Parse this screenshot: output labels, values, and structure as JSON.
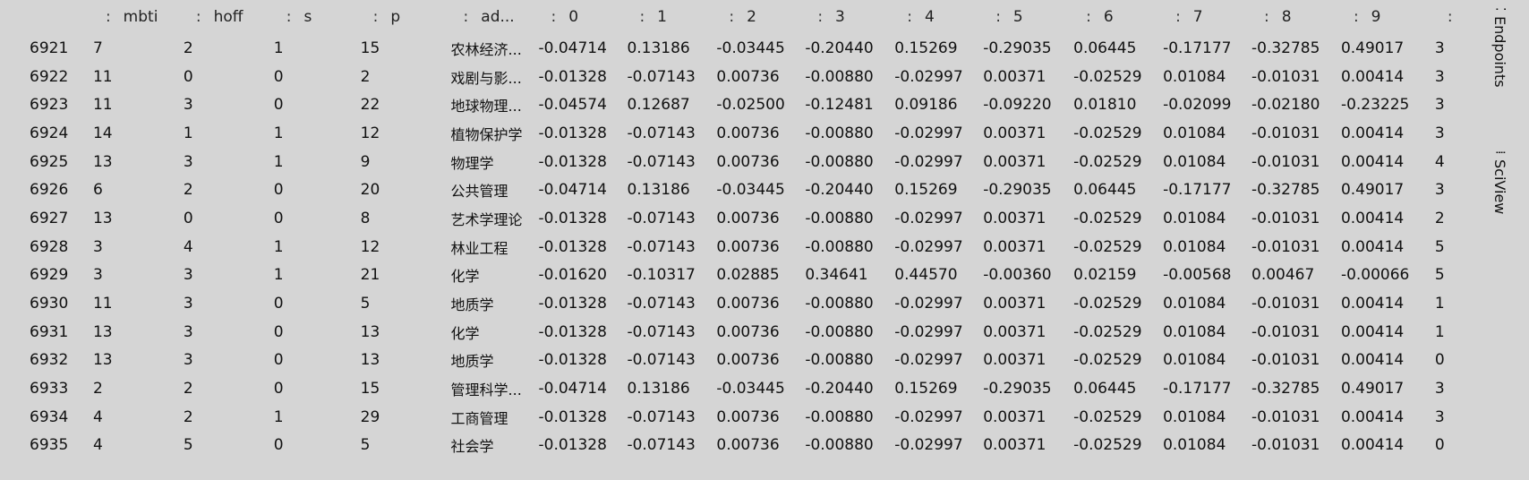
{
  "columns": [
    {
      "label": "",
      "colon": false
    },
    {
      "label": "mbti",
      "colon": true
    },
    {
      "label": "hoff",
      "colon": true
    },
    {
      "label": "s",
      "colon": true
    },
    {
      "label": "p",
      "colon": true
    },
    {
      "label": "ad...",
      "colon": true
    },
    {
      "label": "0",
      "colon": true
    },
    {
      "label": "1",
      "colon": true
    },
    {
      "label": "2",
      "colon": true
    },
    {
      "label": "3",
      "colon": true
    },
    {
      "label": "4",
      "colon": true
    },
    {
      "label": "5",
      "colon": true
    },
    {
      "label": "6",
      "colon": true
    },
    {
      "label": "7",
      "colon": true
    },
    {
      "label": "8",
      "colon": true
    },
    {
      "label": "9",
      "colon": true
    },
    {
      "label": "",
      "colon": true
    }
  ],
  "rows": [
    [
      "6921",
      "7",
      "2",
      "1",
      "15",
      "农林经济...",
      "-0.04714",
      "0.13186",
      "-0.03445",
      "-0.20440",
      "0.15269",
      "-0.29035",
      "0.06445",
      "-0.17177",
      "-0.32785",
      "0.49017",
      "3"
    ],
    [
      "6922",
      "11",
      "0",
      "0",
      "2",
      "戏剧与影...",
      "-0.01328",
      "-0.07143",
      "0.00736",
      "-0.00880",
      "-0.02997",
      "0.00371",
      "-0.02529",
      "0.01084",
      "-0.01031",
      "0.00414",
      "3"
    ],
    [
      "6923",
      "11",
      "3",
      "0",
      "22",
      "地球物理...",
      "-0.04574",
      "0.12687",
      "-0.02500",
      "-0.12481",
      "0.09186",
      "-0.09220",
      "0.01810",
      "-0.02099",
      "-0.02180",
      "-0.23225",
      "3"
    ],
    [
      "6924",
      "14",
      "1",
      "1",
      "12",
      "植物保护学",
      "-0.01328",
      "-0.07143",
      "0.00736",
      "-0.00880",
      "-0.02997",
      "0.00371",
      "-0.02529",
      "0.01084",
      "-0.01031",
      "0.00414",
      "3"
    ],
    [
      "6925",
      "13",
      "3",
      "1",
      "9",
      "物理学",
      "-0.01328",
      "-0.07143",
      "0.00736",
      "-0.00880",
      "-0.02997",
      "0.00371",
      "-0.02529",
      "0.01084",
      "-0.01031",
      "0.00414",
      "4"
    ],
    [
      "6926",
      "6",
      "2",
      "0",
      "20",
      "公共管理",
      "-0.04714",
      "0.13186",
      "-0.03445",
      "-0.20440",
      "0.15269",
      "-0.29035",
      "0.06445",
      "-0.17177",
      "-0.32785",
      "0.49017",
      "3"
    ],
    [
      "6927",
      "13",
      "0",
      "0",
      "8",
      "艺术学理论",
      "-0.01328",
      "-0.07143",
      "0.00736",
      "-0.00880",
      "-0.02997",
      "0.00371",
      "-0.02529",
      "0.01084",
      "-0.01031",
      "0.00414",
      "2"
    ],
    [
      "6928",
      "3",
      "4",
      "1",
      "12",
      "林业工程",
      "-0.01328",
      "-0.07143",
      "0.00736",
      "-0.00880",
      "-0.02997",
      "0.00371",
      "-0.02529",
      "0.01084",
      "-0.01031",
      "0.00414",
      "5"
    ],
    [
      "6929",
      "3",
      "3",
      "1",
      "21",
      "化学",
      "-0.01620",
      "-0.10317",
      "0.02885",
      "0.34641",
      "0.44570",
      "-0.00360",
      "0.02159",
      "-0.00568",
      "0.00467",
      "-0.00066",
      "5"
    ],
    [
      "6930",
      "11",
      "3",
      "0",
      "5",
      "地质学",
      "-0.01328",
      "-0.07143",
      "0.00736",
      "-0.00880",
      "-0.02997",
      "0.00371",
      "-0.02529",
      "0.01084",
      "-0.01031",
      "0.00414",
      "1"
    ],
    [
      "6931",
      "13",
      "3",
      "0",
      "13",
      "化学",
      "-0.01328",
      "-0.07143",
      "0.00736",
      "-0.00880",
      "-0.02997",
      "0.00371",
      "-0.02529",
      "0.01084",
      "-0.01031",
      "0.00414",
      "1"
    ],
    [
      "6932",
      "13",
      "3",
      "0",
      "13",
      "地质学",
      "-0.01328",
      "-0.07143",
      "0.00736",
      "-0.00880",
      "-0.02997",
      "0.00371",
      "-0.02529",
      "0.01084",
      "-0.01031",
      "0.00414",
      "0"
    ],
    [
      "6933",
      "2",
      "2",
      "0",
      "15",
      "管理科学...",
      "-0.04714",
      "0.13186",
      "-0.03445",
      "-0.20440",
      "0.15269",
      "-0.29035",
      "0.06445",
      "-0.17177",
      "-0.32785",
      "0.49017",
      "3"
    ],
    [
      "6934",
      "4",
      "2",
      "1",
      "29",
      "工商管理",
      "-0.01328",
      "-0.07143",
      "0.00736",
      "-0.00880",
      "-0.02997",
      "0.00371",
      "-0.02529",
      "0.01084",
      "-0.01031",
      "0.00414",
      "3"
    ],
    [
      "6935",
      "4",
      "5",
      "0",
      "5",
      "社会学",
      "-0.01328",
      "-0.07143",
      "0.00736",
      "-0.00880",
      "-0.02997",
      "0.00371",
      "-0.02529",
      "0.01084",
      "-0.01031",
      "0.00414",
      "0"
    ]
  ],
  "side_panel": {
    "tabs": [
      {
        "label": "Endpoints",
        "icon": "endpoints-icon"
      },
      {
        "label": "SciView",
        "icon": "sciview-icon"
      }
    ]
  }
}
